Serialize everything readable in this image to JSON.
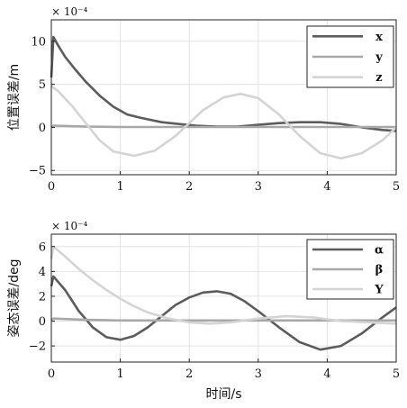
{
  "chart_data": [
    {
      "type": "line",
      "title": "",
      "xlabel": "",
      "ylabel": "位置误差/m",
      "multiplier_label": "× 10⁻⁴",
      "xlim": [
        0,
        5
      ],
      "ylim": [
        -5.5,
        12.5
      ],
      "xticks": [
        0,
        1,
        2,
        3,
        4,
        5
      ],
      "yticks": [
        -5,
        0,
        5,
        10
      ],
      "grid": true,
      "legend_position": "top-right",
      "series": [
        {
          "name": "x",
          "color": "#5c5c5c",
          "x": [
            0,
            0.03,
            0.1,
            0.2,
            0.35,
            0.5,
            0.7,
            0.9,
            1.1,
            1.3,
            1.6,
            1.9,
            2.1,
            2.4,
            2.7,
            3.0,
            3.3,
            3.6,
            3.9,
            4.2,
            4.5,
            4.8,
            5.0
          ],
          "y": [
            5.8,
            10.5,
            9.5,
            8.2,
            6.7,
            5.3,
            3.7,
            2.4,
            1.5,
            1.1,
            0.6,
            0.35,
            0.2,
            0.1,
            0.1,
            0.3,
            0.5,
            0.6,
            0.6,
            0.4,
            0.0,
            -0.3,
            -0.4
          ]
        },
        {
          "name": "y",
          "color": "#a8a8a8",
          "x": [
            0,
            0.03,
            0.5,
            1,
            2,
            3,
            4,
            5
          ],
          "y": [
            0.0,
            0.2,
            0.1,
            0.05,
            0.05,
            0.05,
            0.05,
            0.05
          ]
        },
        {
          "name": "z",
          "color": "#d4d4d4",
          "x": [
            0,
            0.1,
            0.3,
            0.5,
            0.7,
            0.9,
            1.2,
            1.5,
            1.8,
            2.0,
            2.2,
            2.5,
            2.75,
            3.0,
            3.3,
            3.6,
            3.9,
            4.2,
            4.5,
            4.8,
            5.0
          ],
          "y": [
            4.8,
            4.2,
            2.5,
            0.5,
            -1.5,
            -2.8,
            -3.3,
            -2.7,
            -1.0,
            0.5,
            2.0,
            3.5,
            3.9,
            3.4,
            1.5,
            -1.0,
            -3.0,
            -3.6,
            -3.0,
            -1.5,
            0.0
          ]
        }
      ]
    },
    {
      "type": "line",
      "title": "",
      "xlabel": "时间/s",
      "ylabel": "姿态误差/deg",
      "multiplier_label": "× 10⁻⁴",
      "xlim": [
        0,
        5
      ],
      "ylim": [
        -3.3,
        7
      ],
      "xticks": [
        0,
        1,
        2,
        3,
        4,
        5
      ],
      "yticks": [
        -2,
        0,
        2,
        4,
        6
      ],
      "grid": true,
      "legend_position": "top-right",
      "series": [
        {
          "name": "α",
          "color": "#5c5c5c",
          "x": [
            0,
            0.03,
            0.2,
            0.4,
            0.6,
            0.8,
            1.0,
            1.2,
            1.4,
            1.6,
            1.8,
            2.0,
            2.2,
            2.4,
            2.6,
            2.8,
            3.0,
            3.3,
            3.6,
            3.9,
            4.2,
            4.5,
            4.8,
            5.0
          ],
          "y": [
            2.8,
            3.6,
            2.5,
            0.8,
            -0.5,
            -1.3,
            -1.5,
            -1.2,
            -0.5,
            0.4,
            1.3,
            1.9,
            2.3,
            2.4,
            2.2,
            1.6,
            0.8,
            -0.5,
            -1.7,
            -2.3,
            -2.0,
            -1.0,
            0.3,
            1.1
          ]
        },
        {
          "name": "β",
          "color": "#a8a8a8",
          "x": [
            0,
            0.03,
            0.5,
            1,
            2,
            3,
            4,
            5
          ],
          "y": [
            0.1,
            0.2,
            0.1,
            0.05,
            0.05,
            0.05,
            0.05,
            0.05
          ]
        },
        {
          "name": "Y",
          "color": "#d4d4d4",
          "x": [
            0,
            0.03,
            0.2,
            0.4,
            0.6,
            0.8,
            1.0,
            1.2,
            1.4,
            1.7,
            2.0,
            2.3,
            2.6,
            3.0,
            3.4,
            3.8,
            4.2,
            4.6,
            5.0
          ],
          "y": [
            5.0,
            6.0,
            5.2,
            4.2,
            3.3,
            2.5,
            1.8,
            1.2,
            0.7,
            0.2,
            -0.1,
            -0.2,
            -0.1,
            0.2,
            0.4,
            0.3,
            0.0,
            -0.1,
            -0.2
          ]
        }
      ]
    }
  ]
}
